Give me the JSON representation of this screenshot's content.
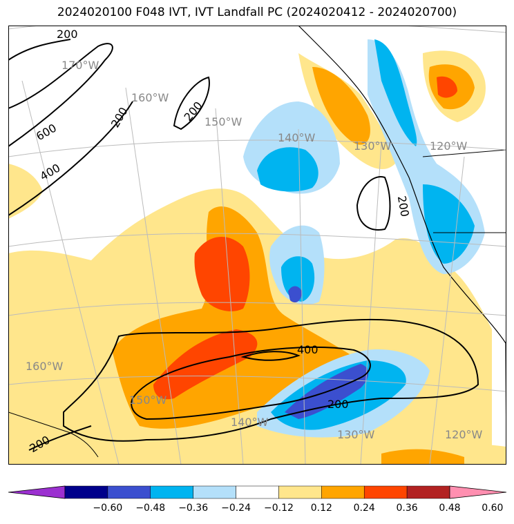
{
  "title": "2024020100 F048 IVT, IVT Landfall PC (2024020412 - 2024020700)",
  "map": {
    "longitude_labels": [
      "170°W",
      "160°W",
      "150°W",
      "140°W",
      "130°W",
      "120°W",
      "160°W",
      "150°W",
      "140°W",
      "130°W",
      "120°W"
    ],
    "contour_labels": [
      "200",
      "600",
      "400",
      "200",
      "200",
      "200",
      "400",
      "200",
      "200"
    ]
  },
  "colorbar": {
    "colors": [
      "#9b30d0",
      "#00008b",
      "#3b4fcf",
      "#00b4f0",
      "#b4e0fa",
      "#ffffff",
      "#ffe68c",
      "#ffa500",
      "#ff4500",
      "#b22222",
      "#ff8fb0"
    ],
    "ticks": [
      "−0.60",
      "−0.48",
      "−0.36",
      "−0.24",
      "−0.12",
      "0.12",
      "0.24",
      "0.36",
      "0.48",
      "0.60"
    ]
  }
}
